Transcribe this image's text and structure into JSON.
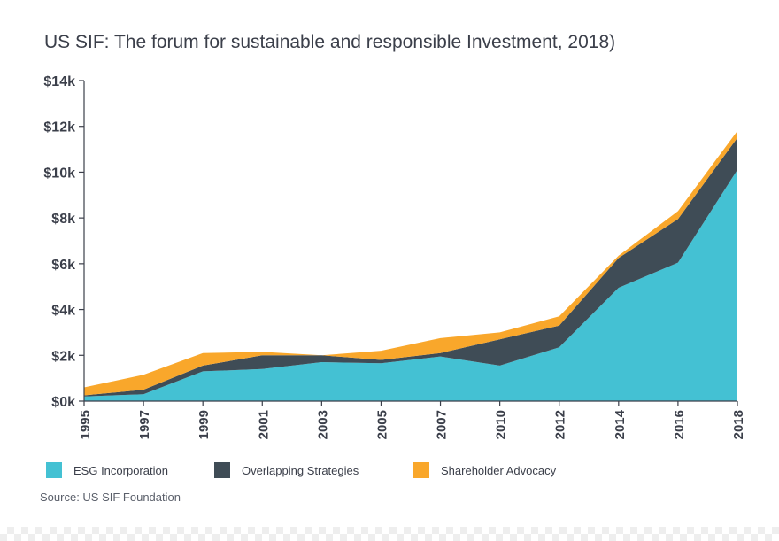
{
  "title": "US SIF: The forum for sustainable and responsible Investment, 2018)",
  "source": "Source: US SIF Foundation",
  "colors": {
    "esg": "#44c1d3",
    "overlap": "#3f4c56",
    "advocacy": "#f9a72b",
    "axis": "#3b3f4a"
  },
  "chart_data": {
    "type": "area",
    "stacked": true,
    "x": [
      "1995",
      "1997",
      "1999",
      "2001",
      "2003",
      "2005",
      "2007",
      "2010",
      "2012",
      "2014",
      "2016",
      "2018"
    ],
    "series": [
      {
        "name": "ESG Incorporation",
        "color": "#44c1d3",
        "values": [
          200,
          300,
          1300,
          1400,
          1700,
          1650,
          1950,
          1550,
          2350,
          4950,
          6050,
          10100
        ]
      },
      {
        "name": "Overlapping Strategies",
        "color": "#3f4c56",
        "values": [
          50,
          200,
          250,
          600,
          300,
          150,
          150,
          1150,
          950,
          1300,
          1900,
          1400
        ]
      },
      {
        "name": "Shareholder Advocacy",
        "color": "#f9a72b",
        "values": [
          350,
          650,
          550,
          150,
          0,
          400,
          650,
          300,
          400,
          100,
          350,
          300
        ]
      }
    ],
    "yticks": [
      "$0k",
      "$2k",
      "$4k",
      "$6k",
      "$8k",
      "$10k",
      "$12k",
      "$14k"
    ],
    "ylim": [
      0,
      14000
    ],
    "legend_position": "bottom-left",
    "grid": false
  }
}
